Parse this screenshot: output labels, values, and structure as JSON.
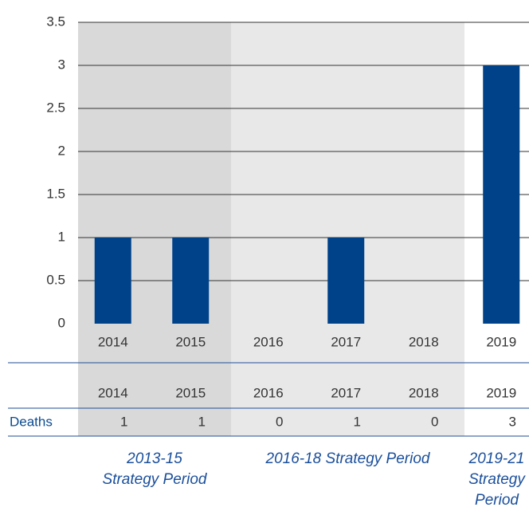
{
  "chart_data": {
    "type": "bar",
    "categories": [
      "2014",
      "2015",
      "2016",
      "2017",
      "2018",
      "2019"
    ],
    "series": [
      {
        "name": "Deaths",
        "color": "#00428a",
        "values": [
          1,
          1,
          0,
          1,
          0,
          3
        ]
      }
    ],
    "ylim": [
      0,
      3.5
    ],
    "yticks": [
      0,
      0.5,
      1,
      1.5,
      2,
      2.5,
      3,
      3.5
    ],
    "grid": true,
    "periods": [
      "2013-15\nStrategy Period",
      "2016-18 Strategy Period",
      "2019-21\nStrategy\nPeriod"
    ]
  }
}
